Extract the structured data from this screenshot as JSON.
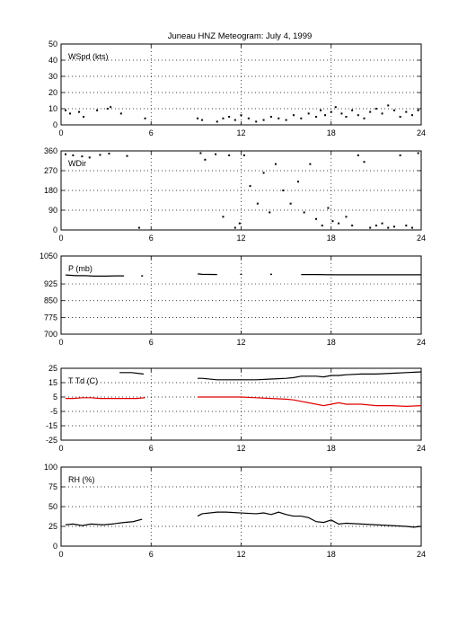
{
  "title": "Juneau HNZ Meteogram:      July   4, 1999",
  "colors": {
    "primary": "#000000",
    "dewpoint": "#e00000",
    "grid": "#000000",
    "background": "#ffffff"
  },
  "chart_data": [
    {
      "type": "scatter",
      "label": "WSpd (kts)",
      "xlim": [
        0,
        24
      ],
      "ylim": [
        0,
        50
      ],
      "xticks": [
        "0",
        "6",
        "12",
        "18",
        "24"
      ],
      "yticks": [
        "0",
        "10",
        "20",
        "30",
        "40",
        "50"
      ],
      "grid": true,
      "series": [
        {
          "color": "#000000",
          "x": [
            0.3,
            0.6,
            1.2,
            1.5,
            2.4,
            3.1,
            3.3,
            4.0,
            5.6,
            9.1,
            9.4,
            10.4,
            10.8,
            11.2,
            11.6,
            12.0,
            12.5,
            13.0,
            13.5,
            14.0,
            14.5,
            15.0,
            15.5,
            16.0,
            16.5,
            17.0,
            17.3,
            17.6,
            18.0,
            18.3,
            18.7,
            19.0,
            19.4,
            19.8,
            20.2,
            20.6,
            21.0,
            21.4,
            21.8,
            22.2,
            22.6,
            23.0,
            23.4,
            23.8
          ],
          "y": [
            9,
            7,
            8,
            5,
            9,
            10,
            11,
            7,
            4,
            4,
            3,
            2,
            4,
            5,
            3,
            6,
            4,
            2,
            3,
            5,
            4,
            3,
            6,
            4,
            7,
            5,
            9,
            6,
            8,
            11,
            7,
            5,
            9,
            6,
            4,
            8,
            10,
            7,
            12,
            9,
            5,
            8,
            6,
            9
          ]
        }
      ]
    },
    {
      "type": "scatter",
      "label": "WDir",
      "xlim": [
        0,
        24
      ],
      "ylim": [
        0,
        360
      ],
      "xticks": [
        "0",
        "6",
        "12",
        "18",
        "24"
      ],
      "yticks": [
        "0",
        "90",
        "180",
        "270",
        "360"
      ],
      "grid": true,
      "series": [
        {
          "color": "#000000",
          "x": [
            0.3,
            0.8,
            1.4,
            1.9,
            2.6,
            3.2,
            4.4,
            5.2,
            9.3,
            9.6,
            10.3,
            10.8,
            11.2,
            11.6,
            11.9,
            12.2,
            12.6,
            13.1,
            13.5,
            13.9,
            14.3,
            14.8,
            15.3,
            15.8,
            16.2,
            16.6,
            17.0,
            17.4,
            17.8,
            18.1,
            18.5,
            19.0,
            19.4,
            19.8,
            20.2,
            20.6,
            21.0,
            21.4,
            21.8,
            22.2,
            22.6,
            23.0,
            23.4,
            23.8
          ],
          "y": [
            345,
            340,
            335,
            330,
            342,
            348,
            337,
            10,
            350,
            320,
            345,
            60,
            340,
            10,
            30,
            340,
            200,
            120,
            260,
            80,
            300,
            180,
            120,
            220,
            80,
            300,
            50,
            20,
            100,
            40,
            30,
            60,
            20,
            340,
            310,
            10,
            20,
            30,
            10,
            15,
            340,
            20,
            10,
            350
          ]
        }
      ]
    },
    {
      "type": "line",
      "label": "P (mb)",
      "xlim": [
        0,
        24
      ],
      "ylim": [
        700,
        1050
      ],
      "xticks": [
        "0",
        "6",
        "12",
        "18",
        "24"
      ],
      "yticks": [
        "700",
        "775",
        "850",
        "925",
        "1050"
      ],
      "grid": true,
      "series": [
        {
          "color": "#000000",
          "x": [
            0.3,
            1.0,
            1.6,
            2.2,
            3.0,
            3.6,
            4.2,
            5.4,
            9.1,
            9.4,
            10.4,
            12.0,
            14.0,
            16.0,
            17.0,
            18.0,
            19.0,
            20.0,
            21.0,
            22.0,
            23.0,
            24.0
          ],
          "y": [
            965,
            962,
            962,
            960,
            960,
            961,
            961,
            960,
            970,
            968,
            967,
            967,
            967,
            967,
            967,
            966,
            966,
            966,
            966,
            966,
            966,
            966
          ]
        }
      ]
    },
    {
      "type": "line",
      "label": "T Td (C)",
      "xlim": [
        0,
        24
      ],
      "ylim": [
        -25,
        25
      ],
      "xticks": [
        "0",
        "6",
        "12",
        "18",
        "24"
      ],
      "yticks": [
        "-25",
        "-15",
        "-5",
        "5",
        "15",
        "25"
      ],
      "grid": true,
      "series": [
        {
          "name": "T",
          "color": "#000000",
          "x": [
            3.9,
            4.7,
            5.5,
            9.1,
            9.4,
            10.4,
            11.0,
            12.0,
            13.0,
            14.0,
            15.0,
            15.5,
            16.0,
            17.0,
            17.5,
            18.0,
            18.5,
            19.0,
            20.0,
            21.0,
            22.0,
            23.0,
            24.0
          ],
          "y": [
            22,
            22,
            21,
            18,
            18,
            17,
            17,
            17,
            17,
            17.5,
            18,
            18.5,
            19.5,
            19.5,
            19,
            20,
            20,
            20.5,
            21,
            21,
            21.5,
            22,
            22.5
          ]
        },
        {
          "name": "Td",
          "color": "#e00000",
          "x": [
            0.3,
            0.8,
            1.4,
            2.0,
            2.6,
            3.2,
            3.8,
            4.4,
            5.0,
            5.6,
            9.1,
            10.0,
            11.0,
            12.0,
            13.0,
            14.0,
            15.0,
            15.5,
            16.0,
            16.5,
            17.0,
            17.5,
            18.0,
            18.5,
            19.0,
            20.0,
            21.0,
            22.0,
            23.0,
            24.0
          ],
          "y": [
            4,
            4,
            4.5,
            4.5,
            4,
            4,
            4,
            4,
            4,
            4.5,
            5,
            5,
            5,
            5,
            4.5,
            4,
            3.5,
            3,
            2,
            1,
            0,
            -1,
            0,
            1,
            0,
            0,
            -1,
            -1,
            -1.5,
            -1
          ]
        }
      ]
    },
    {
      "type": "line",
      "label": "RH (%)",
      "xlim": [
        0,
        24
      ],
      "ylim": [
        0,
        100
      ],
      "xticks": [
        "0",
        "6",
        "12",
        "18",
        "24"
      ],
      "yticks": [
        "0",
        "25",
        "50",
        "75",
        "100"
      ],
      "grid": true,
      "series": [
        {
          "color": "#000000",
          "x": [
            0.3,
            0.8,
            1.4,
            2.0,
            2.8,
            3.4,
            4.2,
            4.8,
            5.4,
            9.1,
            9.4,
            10.4,
            11.0,
            12.0,
            13.0,
            13.5,
            14.0,
            14.5,
            15.0,
            15.5,
            16.0,
            16.5,
            17.0,
            17.5,
            18.0,
            18.5,
            19.0,
            20.0,
            21.0,
            22.0,
            23.0,
            23.5,
            24.0
          ],
          "y": [
            27,
            28,
            26,
            28,
            27,
            28,
            30,
            31,
            34,
            38,
            41,
            43,
            43,
            42,
            41,
            42,
            40,
            43,
            40,
            38,
            38,
            36,
            31,
            30,
            33,
            28,
            29,
            28,
            27,
            26,
            25,
            24,
            25
          ]
        }
      ]
    }
  ]
}
